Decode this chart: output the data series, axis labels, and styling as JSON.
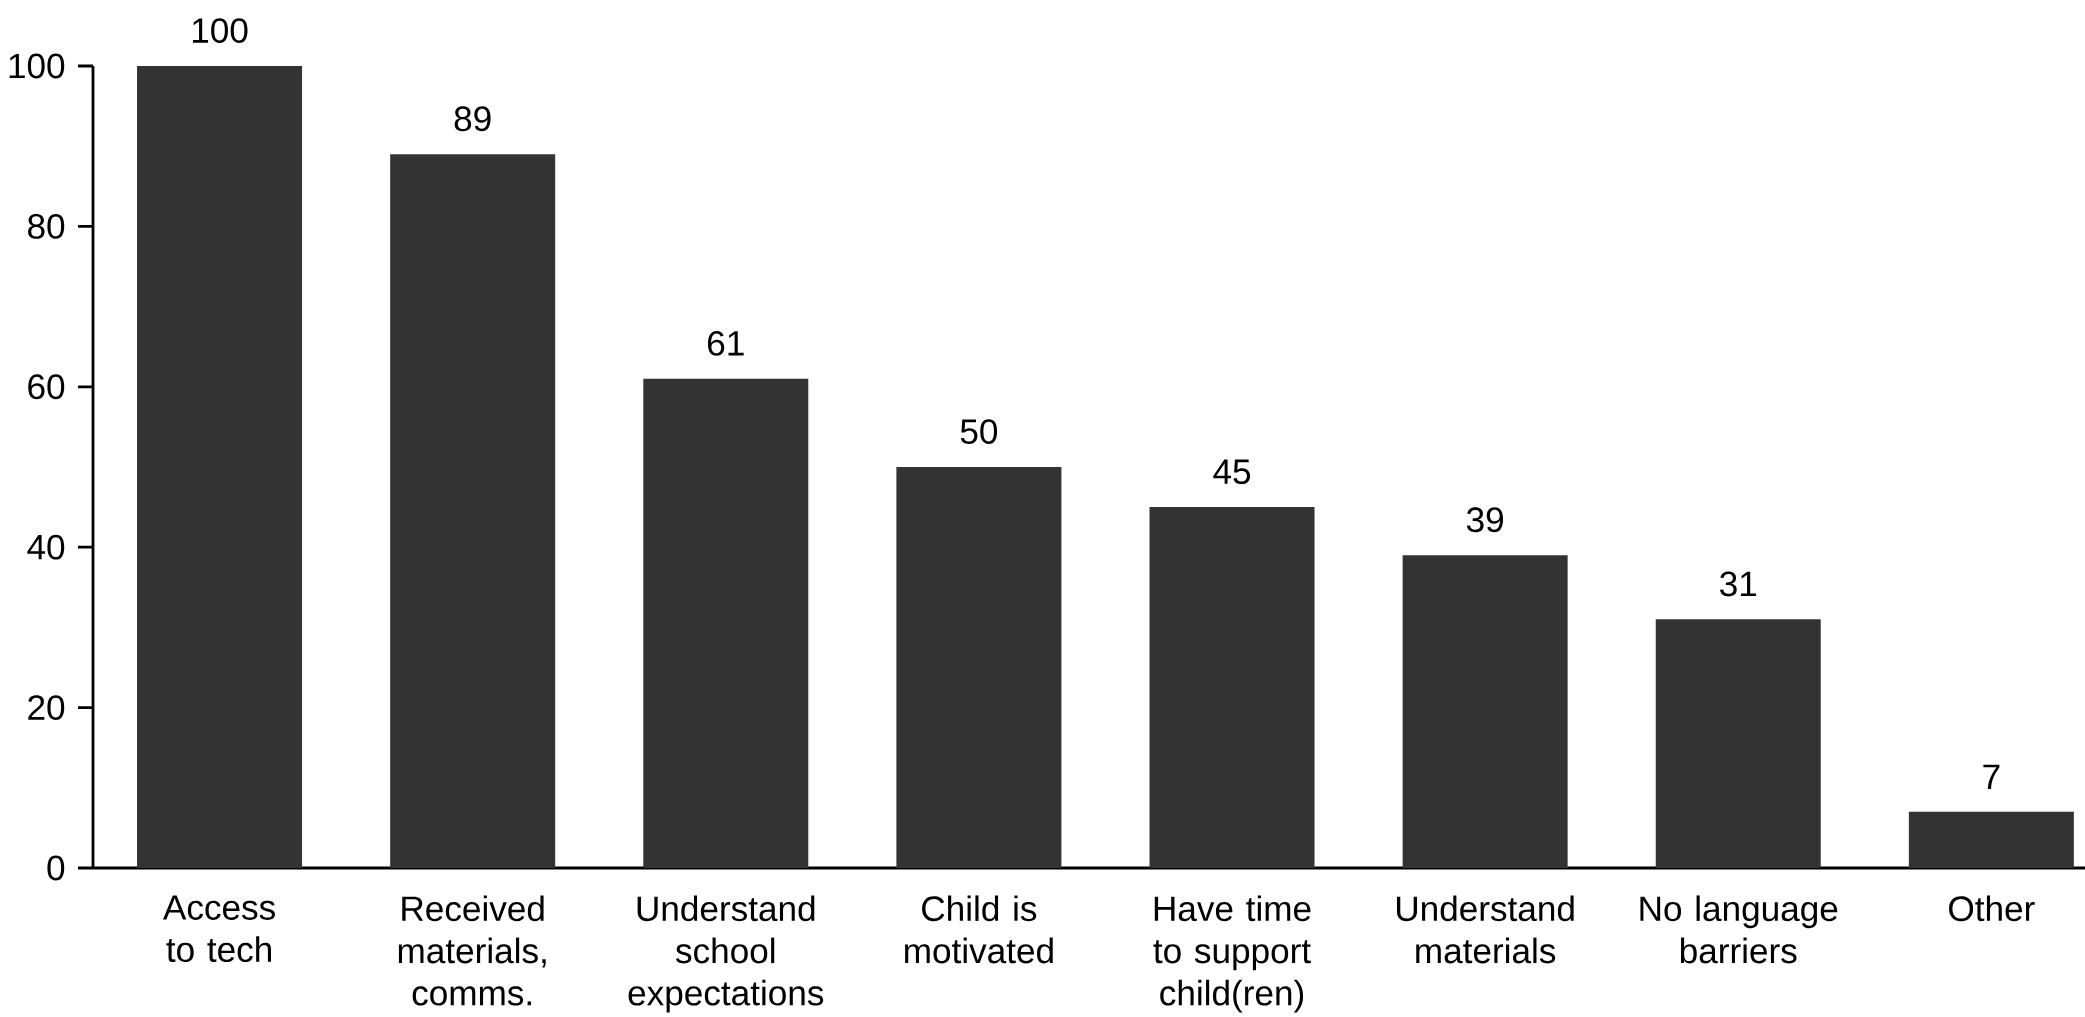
{
  "chart_data": {
    "type": "bar",
    "categories": [
      "Access to tech",
      "Received materials, comms.",
      "Understand school expectations",
      "Child is motivated",
      "Have time to support child(ren)",
      "Understand materials",
      "No language barriers",
      "Other"
    ],
    "values": [
      100,
      89,
      61,
      50,
      45,
      39,
      31,
      7
    ],
    "color": "#333333",
    "ylim": [
      0,
      100
    ],
    "yticks": [
      0,
      20,
      40,
      60,
      80,
      100
    ],
    "data_labels": true
  }
}
